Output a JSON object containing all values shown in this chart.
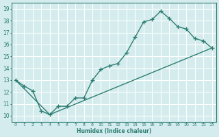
{
  "xlabel": "Humidex (Indice chaleur)",
  "xlim": [
    -0.5,
    23.5
  ],
  "ylim": [
    9.5,
    19.5
  ],
  "xticks": [
    0,
    1,
    2,
    3,
    4,
    5,
    6,
    7,
    8,
    9,
    10,
    11,
    12,
    13,
    14,
    15,
    16,
    17,
    18,
    19,
    20,
    21,
    22,
    23
  ],
  "yticks": [
    10,
    11,
    12,
    13,
    14,
    15,
    16,
    17,
    18,
    19
  ],
  "bg_color": "#d4ecee",
  "grid_color": "#ffffff",
  "line_color": "#2e7d72",
  "line1_x": [
    0,
    1,
    2,
    3,
    4,
    5,
    6,
    7,
    8,
    9,
    10,
    11,
    12,
    13,
    14,
    15,
    16,
    17,
    18,
    19,
    20,
    21,
    22,
    23
  ],
  "line1_y": [
    13.0,
    12.5,
    12.1,
    10.4,
    10.1,
    10.8,
    10.8,
    11.5,
    11.5,
    13.0,
    13.9,
    14.2,
    14.4,
    15.3,
    16.6,
    17.9,
    18.1,
    18.8,
    18.2,
    17.5,
    17.3,
    16.5,
    16.3,
    15.7
  ],
  "line2_x": [
    0,
    4,
    23
  ],
  "line2_y": [
    13.0,
    10.1,
    15.7
  ],
  "marker": "+",
  "markersize": 4,
  "linewidth": 1.0
}
